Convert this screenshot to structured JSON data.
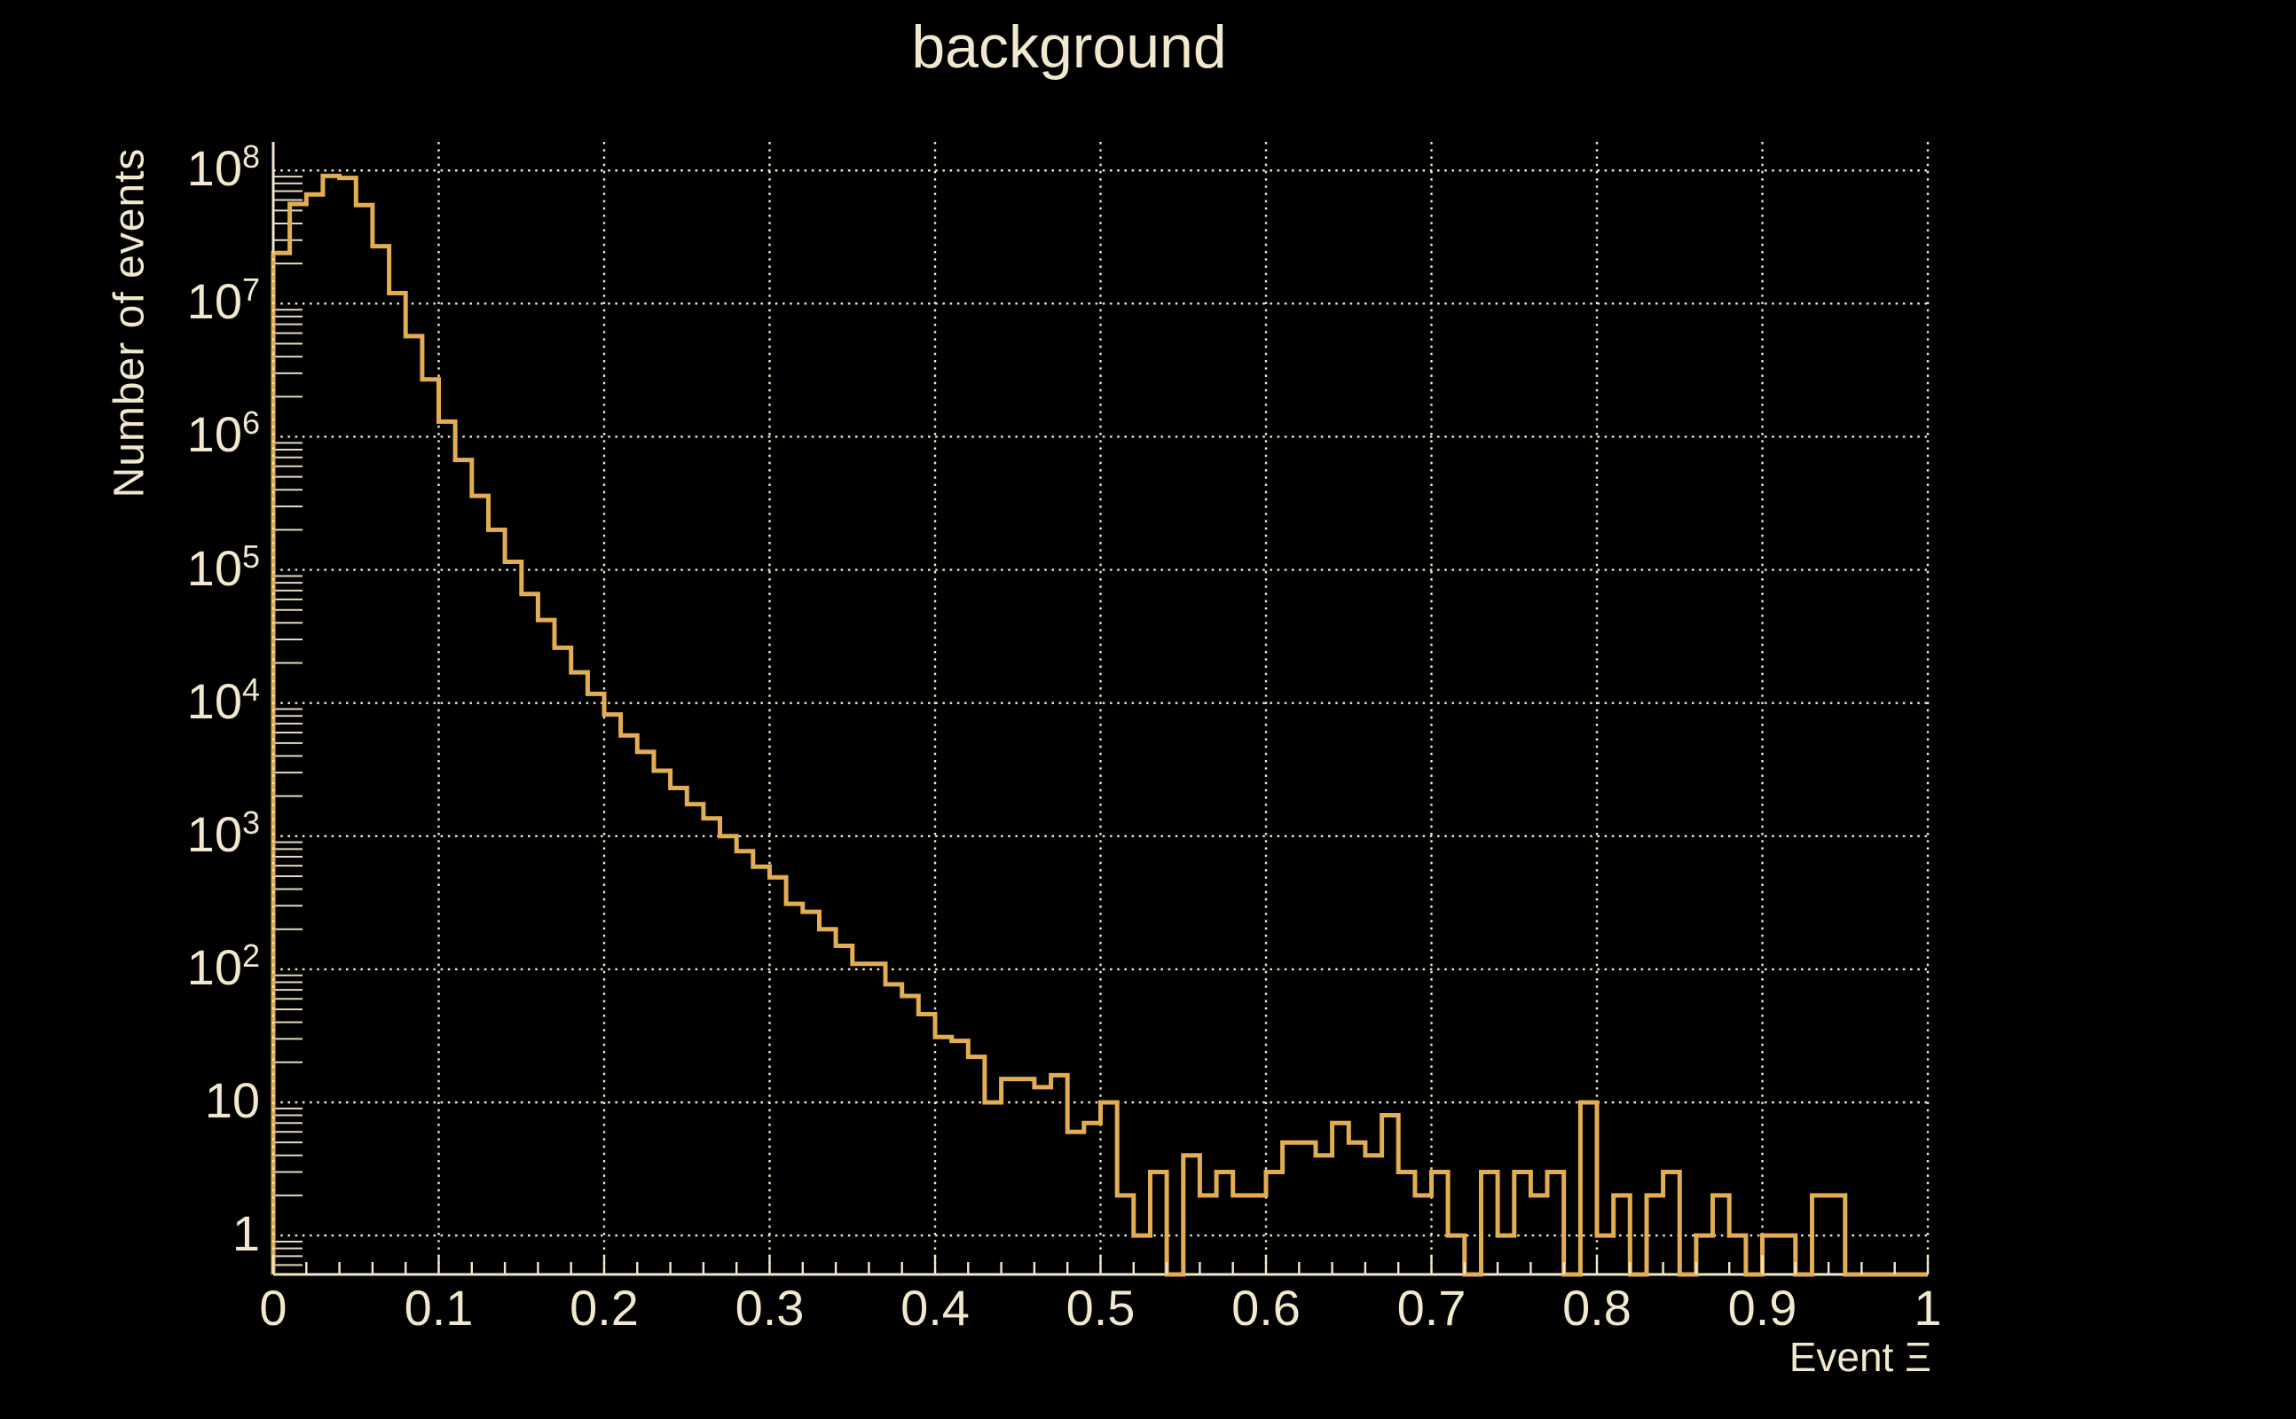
{
  "header": {
    "title": "background"
  },
  "chart_data": {
    "type": "histogram-step",
    "title": "background",
    "xlabel": "Event Ξ",
    "ylabel": "Number of events",
    "yscale": "log",
    "xlim": [
      0,
      1
    ],
    "ylim": [
      0.51,
      164000000.0
    ],
    "grid": true,
    "legend": "none",
    "bin_start": 0,
    "bin_width": 0.01,
    "n_bins": 100,
    "values": [
      24000000.0,
      56000000.0,
      66000000.0,
      91000000.0,
      88000000.0,
      55000000.0,
      27000000.0,
      12000000.0,
      5700000.0,
      2700000.0,
      1300000.0,
      670000.0,
      360000.0,
      200000.0,
      115000.0,
      66000.0,
      42000.0,
      26000.0,
      17000.0,
      11700.0,
      8200,
      5700,
      4300,
      3100,
      2300,
      1740,
      1360,
      1000,
      770,
      590,
      490,
      310,
      270,
      200,
      150,
      110,
      110,
      77,
      63,
      46,
      31,
      29,
      22,
      10,
      15,
      15,
      13,
      16,
      6,
      7,
      10,
      2,
      1,
      3,
      0,
      4,
      2,
      3,
      2,
      2,
      3,
      5,
      5,
      4,
      7,
      5,
      4,
      8,
      3,
      2,
      3,
      1,
      0,
      3,
      1,
      3,
      2,
      3,
      0,
      10,
      1,
      2,
      0,
      2,
      3,
      0,
      1,
      2,
      1,
      0,
      1,
      1,
      0,
      2,
      2,
      0,
      0,
      0,
      0,
      0
    ],
    "x_ticks": {
      "major_step": 0.1,
      "minor_step": 0.02,
      "labels": [
        "0",
        "0.1",
        "0.2",
        "0.3",
        "0.4",
        "0.5",
        "0.6",
        "0.7",
        "0.8",
        "0.9",
        "1"
      ]
    },
    "y_ticks": {
      "decade_values": [
        1,
        10,
        100,
        1000,
        10000,
        100000,
        1000000,
        10000000,
        100000000
      ],
      "labels": [
        {
          "mant": "1",
          "exp": ""
        },
        {
          "mant": "10",
          "exp": ""
        },
        {
          "mant": "10",
          "exp": "2"
        },
        {
          "mant": "10",
          "exp": "3"
        },
        {
          "mant": "10",
          "exp": "4"
        },
        {
          "mant": "10",
          "exp": "5"
        },
        {
          "mant": "10",
          "exp": "6"
        },
        {
          "mant": "10",
          "exp": "7"
        },
        {
          "mant": "10",
          "exp": "8"
        }
      ]
    },
    "colors": {
      "background": "#000000",
      "line": "#e2ad53",
      "axis": "#f0e7cd",
      "grid": "#efe6cb",
      "minor_tick": "#e6dcc0",
      "text": "#f1e8cd"
    }
  }
}
